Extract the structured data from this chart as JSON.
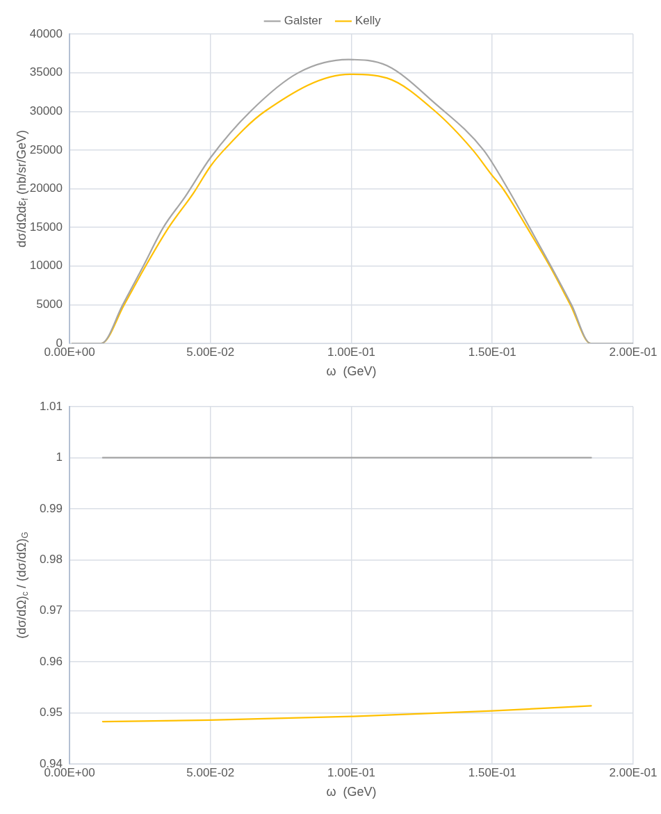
{
  "chart_data": [
    {
      "type": "line",
      "xlabel": "ω  (GeV)",
      "ylabel": "dσ/dΩdε$_{f}$ (nb/sr/GeV)",
      "xlim": [
        0,
        0.2
      ],
      "xticks": [
        {
          "value": 0,
          "label": "0.00E+00"
        },
        {
          "value": 0.05,
          "label": "5.00E-02"
        },
        {
          "value": 0.1,
          "label": "1.00E-01"
        },
        {
          "value": 0.15,
          "label": "1.50E-01"
        },
        {
          "value": 0.2,
          "label": "2.00E-01"
        }
      ],
      "ylim": [
        0,
        40000
      ],
      "yticks": [
        0,
        5000,
        10000,
        15000,
        20000,
        25000,
        30000,
        35000,
        40000
      ],
      "grid": true,
      "legend": "top",
      "marker": "none",
      "line_style": "solid",
      "series": [
        {
          "name": "Galster",
          "color": "#a5a5a5",
          "x": [
            0.001,
            0.0113,
            0.0189,
            0.0262,
            0.0333,
            0.0411,
            0.05,
            0.0642,
            0.0812,
            0.099,
            0.1127,
            0.1298,
            0.1469,
            0.1555,
            0.1632,
            0.1708,
            0.1781,
            0.1849,
            0.2
          ],
          "values": [
            0,
            0,
            5000,
            10000,
            15000,
            19000,
            24000,
            30000,
            35000,
            36700,
            35900,
            31000,
            25000,
            20000,
            15000,
            10000,
            5000,
            0,
            0
          ]
        },
        {
          "name": "Kelly",
          "color": "#ffc000",
          "x": [
            0.001,
            0.0113,
            0.0194,
            0.027,
            0.0352,
            0.0441,
            0.05,
            0.0548,
            0.0693,
            0.0995,
            0.1127,
            0.1298,
            0.1431,
            0.15,
            0.1538,
            0.1623,
            0.1704,
            0.1777,
            0.1849,
            0.2
          ],
          "values": [
            0,
            0,
            5000,
            10000,
            15000,
            19500,
            22900,
            25000,
            30000,
            34800,
            34300,
            30000,
            25000,
            21700,
            20000,
            15000,
            10000,
            5000,
            0,
            0
          ]
        }
      ]
    },
    {
      "type": "line",
      "xlabel": "ω  (GeV)",
      "ylabel": "(dσ/dΩ)$_{c}$ / (dσ/dΩ)$_{G}$",
      "xlim": [
        0,
        0.2
      ],
      "xticks": [
        {
          "value": 0,
          "label": "0.00E+00"
        },
        {
          "value": 0.05,
          "label": "5.00E-02"
        },
        {
          "value": 0.1,
          "label": "1.00E-01"
        },
        {
          "value": 0.15,
          "label": "1.50E-01"
        },
        {
          "value": 0.2,
          "label": "2.00E-01"
        }
      ],
      "ylim": [
        0.94,
        1.01
      ],
      "yticks": [
        0.94,
        0.95,
        0.96,
        0.97,
        0.98,
        0.99,
        1,
        1.01
      ],
      "grid": true,
      "marker": "none",
      "line_style": "solid",
      "series": [
        {
          "color": "#a5a5a5",
          "x": [
            0.0118,
            0.1851
          ],
          "values": [
            1,
            1
          ]
        },
        {
          "color": "#ffc000",
          "x": [
            0.0118,
            0.05,
            0.1,
            0.15,
            0.1851
          ],
          "values": [
            0.9483,
            0.9486,
            0.9493,
            0.9504,
            0.9514
          ]
        }
      ]
    }
  ]
}
